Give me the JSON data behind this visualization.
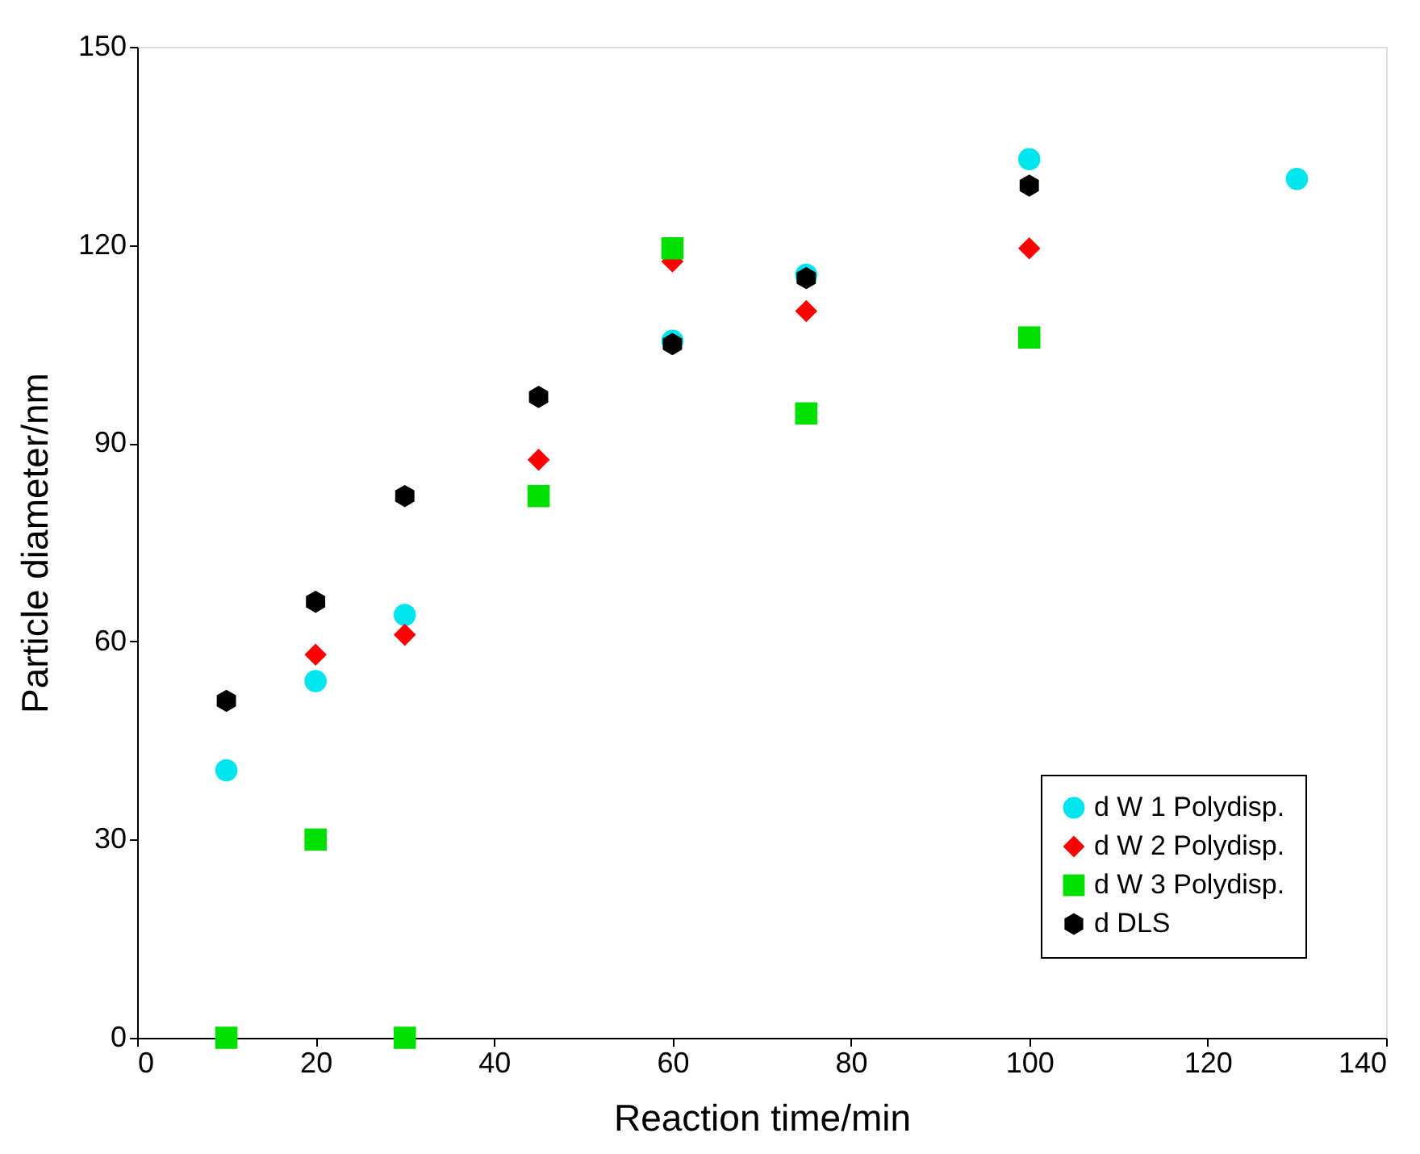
{
  "chart_data": {
    "type": "scatter",
    "xlabel": "Reaction time/min",
    "ylabel": "Particle diameter/nm",
    "x": [
      10,
      20,
      30,
      45,
      60,
      75,
      100,
      130
    ],
    "series": [
      {
        "name": "d W 1 Polydisp.",
        "color": "#00e5ee",
        "marker": "circle",
        "values": [
          40.5,
          54,
          64,
          null,
          105.5,
          115.5,
          133,
          130
        ]
      },
      {
        "name": "d W 2 Polydisp.",
        "color": "#ff0000",
        "marker": "diamond",
        "values": [
          null,
          58,
          61,
          87.5,
          117.5,
          110,
          119.5,
          null
        ]
      },
      {
        "name": "d W 3 Polydisp.",
        "color": "#00e000",
        "marker": "square",
        "values": [
          0,
          30,
          0,
          82,
          119.5,
          94.5,
          106,
          null
        ]
      },
      {
        "name": "d DLS",
        "color": "#000000",
        "values": [
          51,
          66,
          82,
          97,
          105,
          115,
          129,
          null
        ]
      }
    ],
    "xlim": [
      0,
      140
    ],
    "xticks": [
      0,
      20,
      40,
      60,
      80,
      100,
      120,
      140
    ],
    "ylim": [
      0,
      150
    ],
    "yticks": [
      0,
      30,
      60,
      90,
      120,
      150
    ],
    "grid": false,
    "legend": "bottom right"
  }
}
